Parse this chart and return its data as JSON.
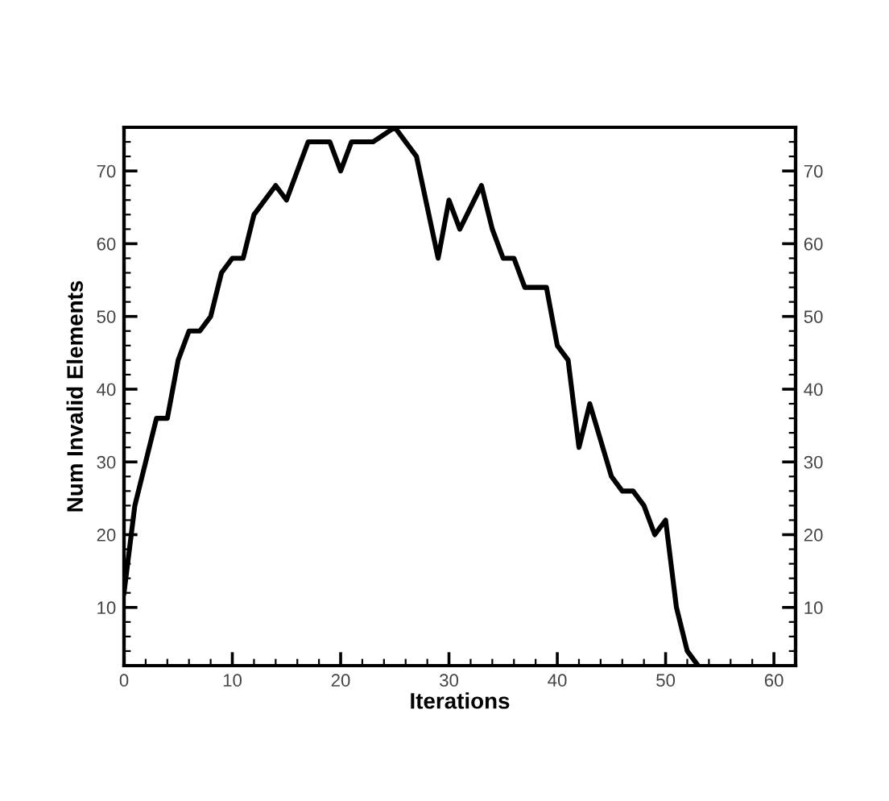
{
  "chart_data": {
    "type": "line",
    "xlabel": "Iterations",
    "ylabel": "Num Invalid Elements",
    "grid": false,
    "legend": false,
    "marker": "none",
    "line_style": "solid",
    "xlim": [
      0,
      62
    ],
    "ylim": [
      2,
      76
    ],
    "xticks": [
      0,
      10,
      20,
      30,
      40,
      50,
      60
    ],
    "yticks": [
      10,
      20,
      30,
      40,
      50,
      60,
      70
    ],
    "y2lim": [
      2,
      76
    ],
    "y2ticks": [
      10,
      20,
      30,
      40,
      50,
      60,
      70
    ],
    "series": [
      {
        "color": "#000000",
        "x": [
          0,
          1,
          3,
          4,
          5,
          6,
          7,
          8,
          9,
          10,
          11,
          12,
          14,
          15,
          17,
          18,
          19,
          20,
          21,
          22,
          23,
          25,
          26,
          27,
          29,
          30,
          31,
          33,
          34,
          35,
          36,
          37,
          39,
          40,
          41,
          42,
          43,
          45,
          46,
          47,
          48,
          49,
          50,
          51,
          52,
          53
        ],
        "values": [
          12,
          24,
          36,
          36,
          44,
          48,
          48,
          50,
          56,
          58,
          58,
          64,
          68,
          66,
          74,
          74,
          74,
          70,
          74,
          74,
          74,
          76,
          74,
          72,
          58,
          66,
          62,
          68,
          62,
          58,
          58,
          54,
          54,
          46,
          44,
          32,
          38,
          28,
          26,
          26,
          24,
          20,
          22,
          10,
          4,
          2
        ]
      }
    ]
  }
}
